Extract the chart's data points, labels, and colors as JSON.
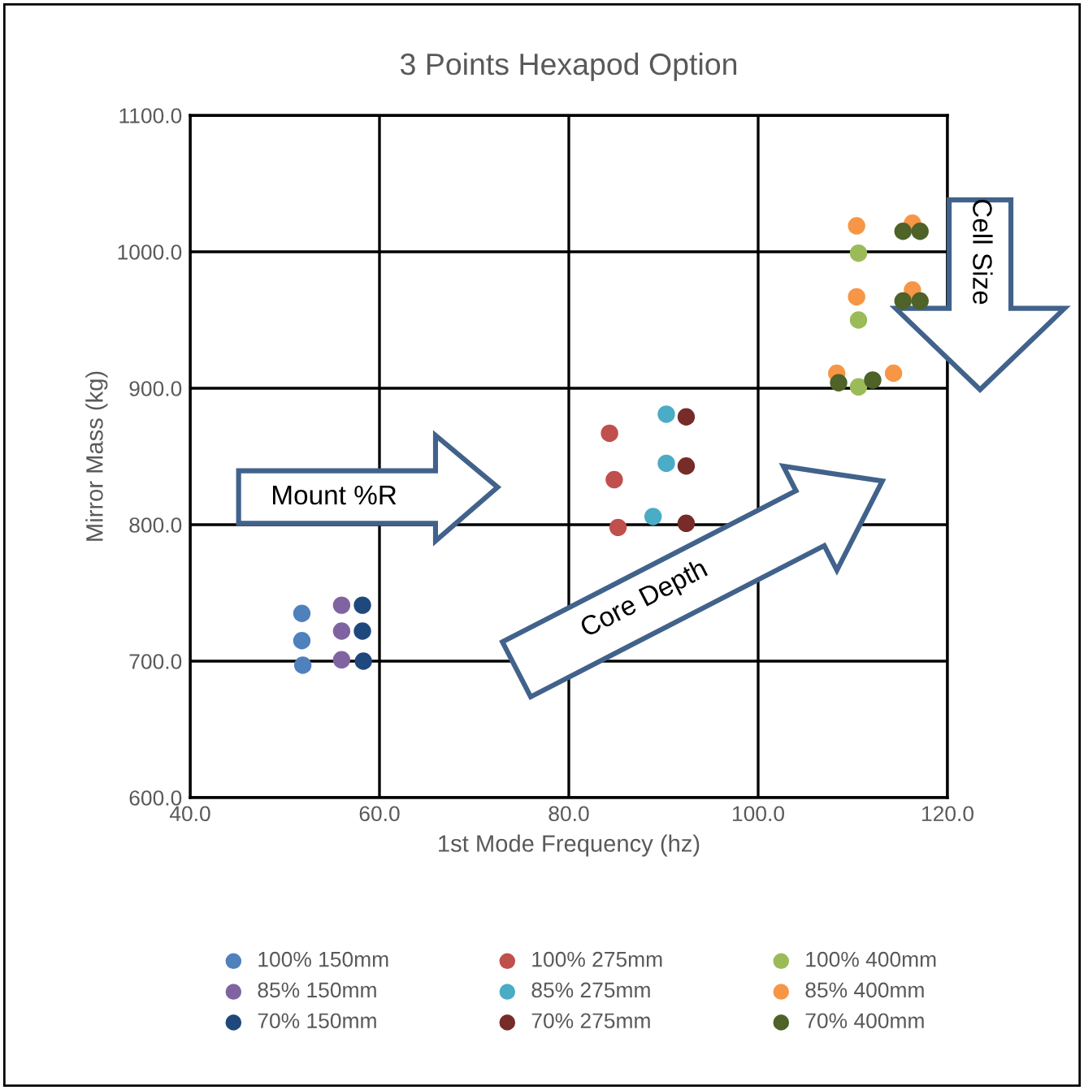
{
  "chart_data": {
    "type": "scatter",
    "title": "3 Points Hexapod Option",
    "xlabel": "1st Mode Frequency (hz)",
    "ylabel": "Mirror Mass (kg)",
    "xlim": [
      40,
      120
    ],
    "ylim": [
      600,
      1100
    ],
    "xticks": [
      {
        "value": 40,
        "label": "40.0"
      },
      {
        "value": 60,
        "label": "60.0"
      },
      {
        "value": 80,
        "label": "80.0"
      },
      {
        "value": 100,
        "label": "100.0"
      },
      {
        "value": 120,
        "label": "120.0"
      }
    ],
    "yticks": [
      {
        "value": 600,
        "label": "600.0"
      },
      {
        "value": 700,
        "label": "700.0"
      },
      {
        "value": 800,
        "label": "800.0"
      },
      {
        "value": 900,
        "label": "900.0"
      },
      {
        "value": 1000,
        "label": "1000.0"
      },
      {
        "value": 1100,
        "label": "1100.0"
      }
    ],
    "grid": true,
    "legend": "bottom",
    "marker": "circle",
    "annotations": [
      "Mount %R",
      "Core Depth",
      "Cell Size"
    ],
    "series": [
      {
        "name": "100% 150mm",
        "color": "#4f81bd",
        "x": [
          51.8,
          51.8,
          51.9
        ],
        "values": [
          735,
          715,
          697
        ]
      },
      {
        "name": "85% 150mm",
        "color": "#8064a2",
        "x": [
          56.0,
          56.0,
          56.0
        ],
        "values": [
          741,
          722,
          701
        ]
      },
      {
        "name": "70% 150mm",
        "color": "#1f497d",
        "x": [
          58.2,
          58.2,
          58.3
        ],
        "values": [
          741,
          722,
          700
        ]
      },
      {
        "name": "100% 275mm",
        "color": "#c0504d",
        "x": [
          84.3,
          84.8,
          85.2
        ],
        "values": [
          867,
          833,
          798
        ]
      },
      {
        "name": "85% 275mm",
        "color": "#4bacc6",
        "x": [
          90.3,
          90.3,
          88.9
        ],
        "values": [
          881,
          845,
          806
        ]
      },
      {
        "name": "70% 275mm",
        "color": "#772c2a",
        "x": [
          92.4,
          92.4,
          92.4
        ],
        "values": [
          879,
          843,
          801
        ]
      },
      {
        "name": "100% 400mm",
        "color": "#9bbb59",
        "x": [
          110.6,
          110.6,
          110.6
        ],
        "values": [
          999,
          950,
          901
        ]
      },
      {
        "name": "85% 400mm",
        "color": "#f79646",
        "x": [
          110.4,
          110.4,
          108.3,
          114.3,
          116.3,
          116.3
        ],
        "values": [
          1019,
          967,
          911,
          911,
          1021,
          972
        ]
      },
      {
        "name": "70% 400mm",
        "color": "#4f6228",
        "x": [
          115.3,
          117.1,
          115.3,
          117.1,
          108.5,
          112.1
        ],
        "values": [
          1015,
          1015,
          964,
          964,
          904,
          906
        ]
      }
    ]
  }
}
